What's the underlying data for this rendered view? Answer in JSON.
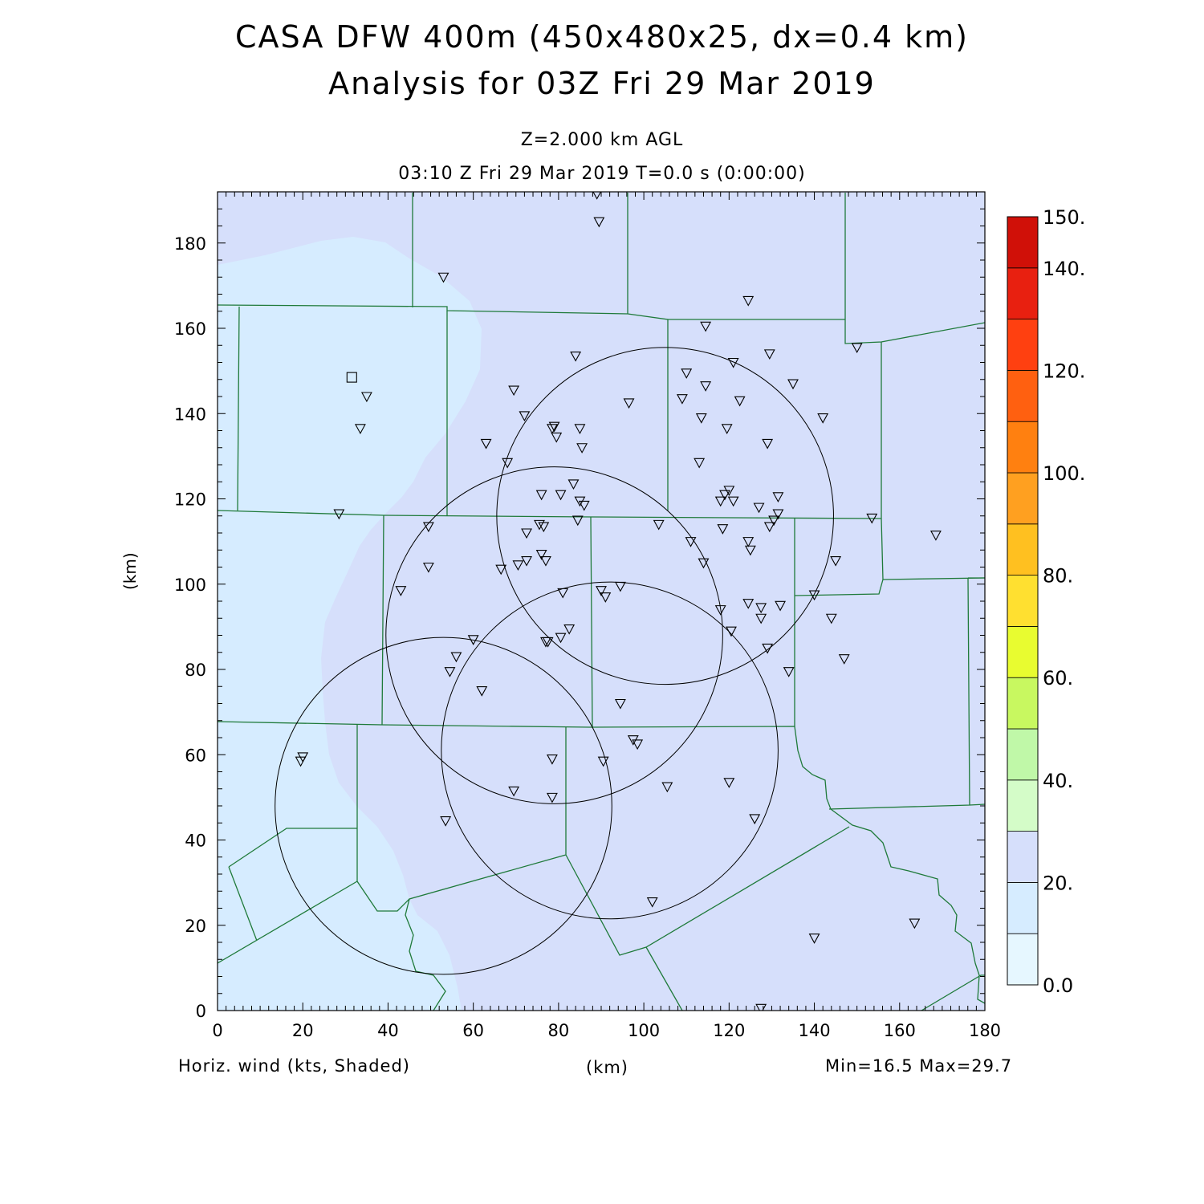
{
  "header": {
    "title_line1": "CASA DFW 400m (450x480x25, dx=0.4 km)",
    "title_line2": "Analysis for 03Z Fri 29 Mar 2019",
    "level": "Z=2.000 km AGL",
    "valid_time": "03:10 Z Fri 29 Mar 2019    T=0.0 s (0:00:00)"
  },
  "footer": {
    "field": "Horiz. wind (kts, Shaded)",
    "x_unit": "(km)",
    "minmax": "Min=16.5 Max=29.7"
  },
  "colors": {
    "frame": "#000000",
    "boundaries": "#1f7a3a",
    "radar_rings": "#000000"
  },
  "chart_data": {
    "type": "heatmap",
    "title": "CASA DFW 400m (450x480x25, dx=0.4 km)",
    "xlabel": "(km)",
    "ylabel": "(km)",
    "xlim": [
      0,
      180
    ],
    "ylim": [
      0,
      192
    ],
    "x_ticks": [
      0,
      20,
      40,
      60,
      80,
      100,
      120,
      140,
      160,
      180
    ],
    "y_ticks": [
      0,
      20,
      40,
      60,
      80,
      100,
      120,
      140,
      160,
      180
    ],
    "grid": false,
    "field": "Horizontal wind speed (kts)",
    "min": 16.5,
    "max": 29.7,
    "colorbar": {
      "levels": [
        0,
        10,
        20,
        30,
        40,
        50,
        60,
        70,
        80,
        90,
        100,
        110,
        120,
        130,
        140,
        150
      ],
      "labels": [
        "0.0",
        "20.",
        "40.",
        "60.",
        "80.",
        "100.",
        "120.",
        "140.",
        "150."
      ],
      "label_values": [
        0,
        20,
        40,
        60,
        80,
        100,
        120,
        140,
        150
      ],
      "colors": [
        "#e6f7ff",
        "#d6ecff",
        "#d6dffb",
        "#d4fcc8",
        "#c0f8a8",
        "#c8f860",
        "#e8fc30",
        "#ffe030",
        "#ffc020",
        "#ffa020",
        "#ff8010",
        "#ff6010",
        "#ff4010",
        "#e82010",
        "#d01008",
        "#b00000"
      ]
    },
    "shading": {
      "background_class": "20-30 kts",
      "lower_class_region": "17-20 kts (western portion)"
    },
    "radar_rings": [
      {
        "cx": 105,
        "cy": 116,
        "r": 39.5
      },
      {
        "cx": 79,
        "cy": 88,
        "r": 39.5
      },
      {
        "cx": 92,
        "cy": 61,
        "r": 39.5
      },
      {
        "cx": 53,
        "cy": 48,
        "r": 39.5
      }
    ],
    "stations_square": [
      [
        31.5,
        148.5
      ]
    ],
    "stations_triangle": [
      [
        89,
        191.5
      ],
      [
        89.5,
        185
      ],
      [
        53,
        172
      ],
      [
        124.5,
        166.5
      ],
      [
        114.5,
        160.5
      ],
      [
        150,
        155.5
      ],
      [
        84,
        153.5
      ],
      [
        129.5,
        154
      ],
      [
        121,
        152
      ],
      [
        110,
        149.5
      ],
      [
        135,
        147
      ],
      [
        69.5,
        145.5
      ],
      [
        114.5,
        146.5
      ],
      [
        35,
        144
      ],
      [
        109,
        143.5
      ],
      [
        122.5,
        143
      ],
      [
        96.5,
        142.5
      ],
      [
        72,
        139.5
      ],
      [
        113.5,
        139
      ],
      [
        142,
        139
      ],
      [
        79,
        137
      ],
      [
        85,
        136.5
      ],
      [
        78.5,
        136.5
      ],
      [
        33.5,
        136.5
      ],
      [
        119.5,
        136.5
      ],
      [
        79.5,
        134.5
      ],
      [
        63,
        133
      ],
      [
        129,
        133
      ],
      [
        85.5,
        132
      ],
      [
        68,
        128.5
      ],
      [
        113,
        128.5
      ],
      [
        83.5,
        123.5
      ],
      [
        120,
        122
      ],
      [
        76,
        121
      ],
      [
        80.5,
        121
      ],
      [
        119,
        121
      ],
      [
        131.5,
        120.5
      ],
      [
        85,
        119.5
      ],
      [
        118,
        119.5
      ],
      [
        121,
        119.5
      ],
      [
        86,
        118.5
      ],
      [
        127,
        118
      ],
      [
        28.5,
        116.5
      ],
      [
        131.5,
        116.5
      ],
      [
        130.5,
        115
      ],
      [
        84.5,
        115
      ],
      [
        153.5,
        115.5
      ],
      [
        75.5,
        114
      ],
      [
        76.5,
        113.5
      ],
      [
        49.5,
        113.5
      ],
      [
        103.5,
        114
      ],
      [
        129.5,
        113.5
      ],
      [
        118.5,
        113
      ],
      [
        72.5,
        112
      ],
      [
        168.5,
        111.5
      ],
      [
        111,
        110
      ],
      [
        124.5,
        110
      ],
      [
        125,
        108
      ],
      [
        76,
        107
      ],
      [
        77,
        105.5
      ],
      [
        72.5,
        105.5
      ],
      [
        114,
        105
      ],
      [
        145,
        105.5
      ],
      [
        70.5,
        104.5
      ],
      [
        66.5,
        103.5
      ],
      [
        49.5,
        104
      ],
      [
        43,
        98.5
      ],
      [
        94.5,
        99.5
      ],
      [
        90,
        98.5
      ],
      [
        81,
        98
      ],
      [
        91,
        97
      ],
      [
        140,
        97.5
      ],
      [
        124.5,
        95.5
      ],
      [
        132,
        95
      ],
      [
        127.5,
        94.5
      ],
      [
        118,
        94
      ],
      [
        127.5,
        92
      ],
      [
        144,
        92
      ],
      [
        120.5,
        89
      ],
      [
        82.5,
        89.5
      ],
      [
        80.5,
        87.5
      ],
      [
        60,
        87
      ],
      [
        77.5,
        86.5
      ],
      [
        77,
        86.5
      ],
      [
        129,
        85
      ],
      [
        56,
        83
      ],
      [
        147,
        82.5
      ],
      [
        54.5,
        79.5
      ],
      [
        134,
        79.5
      ],
      [
        62,
        75
      ],
      [
        94.5,
        72
      ],
      [
        97.5,
        63.5
      ],
      [
        98.5,
        62.5
      ],
      [
        20,
        59.5
      ],
      [
        19.5,
        58.5
      ],
      [
        78.5,
        59
      ],
      [
        90.5,
        58.5
      ],
      [
        120,
        53.5
      ],
      [
        105.5,
        52.5
      ],
      [
        69.5,
        51.5
      ],
      [
        78.5,
        50
      ],
      [
        53.5,
        44.5
      ],
      [
        126,
        45
      ],
      [
        102,
        25.5
      ],
      [
        163.5,
        20.5
      ],
      [
        140,
        17
      ],
      [
        127.5,
        0.5
      ]
    ]
  }
}
